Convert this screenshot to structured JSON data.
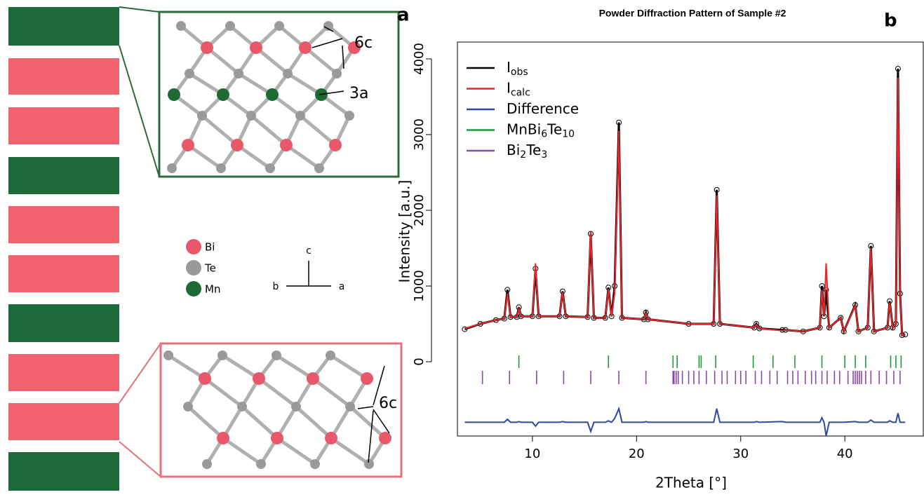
{
  "structure": {
    "panel_a": "a",
    "panel_b": "b",
    "site_6c_top": "6c",
    "site_3a": "3a",
    "site_6c_bottom": "6c",
    "atoms": [
      "Bi",
      "Te",
      "Mn"
    ],
    "axis_c": "c",
    "axis_b": "b",
    "axis_a": "a"
  },
  "chart_data": {
    "type": "line",
    "title": "Powder Diffraction Pattern of Sample #2",
    "x_label": "2Theta [°]",
    "y_label": "Intensity [a.u.]",
    "xlim": [
      2.8,
      47.6
    ],
    "ylim": [
      -981,
      4222
    ],
    "xticks": [
      10,
      20,
      30,
      40
    ],
    "yticks": [
      0,
      1000,
      2000,
      3000,
      4000
    ],
    "legend": "upper left",
    "x": [
      3.5,
      5,
      6.5,
      7.3,
      7.6,
      7.9,
      8.5,
      8.7,
      8.9,
      10.0,
      10.3,
      10.6,
      12.6,
      12.9,
      13.2,
      15.3,
      15.6,
      15.9,
      17.0,
      17.3,
      17.6,
      17.9,
      18.3,
      18.6,
      20.7,
      20.9,
      21.1,
      25,
      27.4,
      27.7,
      28.0,
      31.3,
      31.5,
      31.8,
      34.0,
      34.3,
      36.0,
      37.6,
      37.8,
      38.0,
      38.2,
      38.5,
      39.6,
      39.9,
      41.0,
      41.3,
      42.2,
      42.5,
      42.8,
      44.1,
      44.3,
      44.6,
      44.9,
      45.1,
      45.3,
      45.5,
      45.8
    ],
    "series": [
      {
        "name": "Iobs",
        "color": "#000000",
        "style": "circles",
        "values": [
          430,
          500,
          550,
          570,
          950,
          590,
          590,
          720,
          600,
          600,
          1230,
          600,
          600,
          930,
          600,
          590,
          1690,
          580,
          580,
          980,
          600,
          1000,
          3160,
          580,
          560,
          650,
          560,
          500,
          500,
          2270,
          500,
          450,
          500,
          440,
          420,
          420,
          400,
          450,
          1000,
          600,
          950,
          450,
          580,
          400,
          750,
          400,
          450,
          1530,
          400,
          450,
          800,
          450,
          500,
          3870,
          900,
          350,
          360
        ]
      },
      {
        "name": "Icalc",
        "color": "#e8272a",
        "style": "line",
        "values": [
          440,
          500,
          550,
          570,
          900,
          590,
          590,
          700,
          600,
          600,
          1300,
          600,
          600,
          920,
          600,
          590,
          1720,
          580,
          580,
          960,
          600,
          900,
          3050,
          580,
          560,
          640,
          560,
          500,
          500,
          2200,
          500,
          450,
          490,
          440,
          410,
          420,
          400,
          450,
          950,
          600,
          1300,
          450,
          580,
          400,
          740,
          400,
          450,
          1500,
          400,
          450,
          780,
          450,
          500,
          3750,
          900,
          350,
          360
        ]
      },
      {
        "name": "Difference",
        "color": "#2c4aa0",
        "style": "line",
        "values": [
          -800,
          -800,
          -800,
          -800,
          -760,
          -800,
          -800,
          -790,
          -800,
          -800,
          -850,
          -800,
          -800,
          -790,
          -800,
          -800,
          -920,
          -800,
          -800,
          -780,
          -800,
          -750,
          -620,
          -800,
          -800,
          -790,
          -800,
          -800,
          -800,
          -620,
          -800,
          -800,
          -790,
          -800,
          -790,
          -800,
          -800,
          -800,
          -740,
          -800,
          -980,
          -800,
          -800,
          -800,
          -790,
          -800,
          -800,
          -770,
          -800,
          -800,
          -780,
          -800,
          -800,
          -680,
          -800,
          -800,
          -800
        ]
      },
      {
        "name": "MnBi6Te10",
        "color": "#1e9a3a",
        "style": "ticks",
        "x": [
          8.7,
          17.3,
          23.5,
          23.9,
          26.0,
          26.2,
          27.6,
          31.2,
          33.1,
          35.2,
          37.8,
          40.0,
          41.0,
          42.0,
          44.4,
          44.9,
          45.4
        ]
      },
      {
        "name": "Bi2Te3",
        "color": "#8e44ad",
        "style": "ticks",
        "x": [
          5.2,
          7.8,
          10.4,
          13.0,
          15.6,
          18.3,
          20.9,
          23.5,
          23.6,
          23.8,
          24.0,
          24.4,
          25.0,
          25.5,
          26.0,
          26.7,
          27.5,
          28.2,
          28.7,
          29.5,
          30.0,
          30.5,
          31.4,
          32.0,
          32.8,
          33.5,
          34.5,
          35.0,
          35.5,
          36.2,
          36.8,
          37.2,
          37.8,
          38.3,
          39.0,
          39.5,
          40.3,
          40.8,
          41.0,
          41.2,
          41.4,
          41.6,
          42.0,
          42.5,
          43.3,
          44.0,
          44.7,
          45.3
        ]
      }
    ]
  }
}
